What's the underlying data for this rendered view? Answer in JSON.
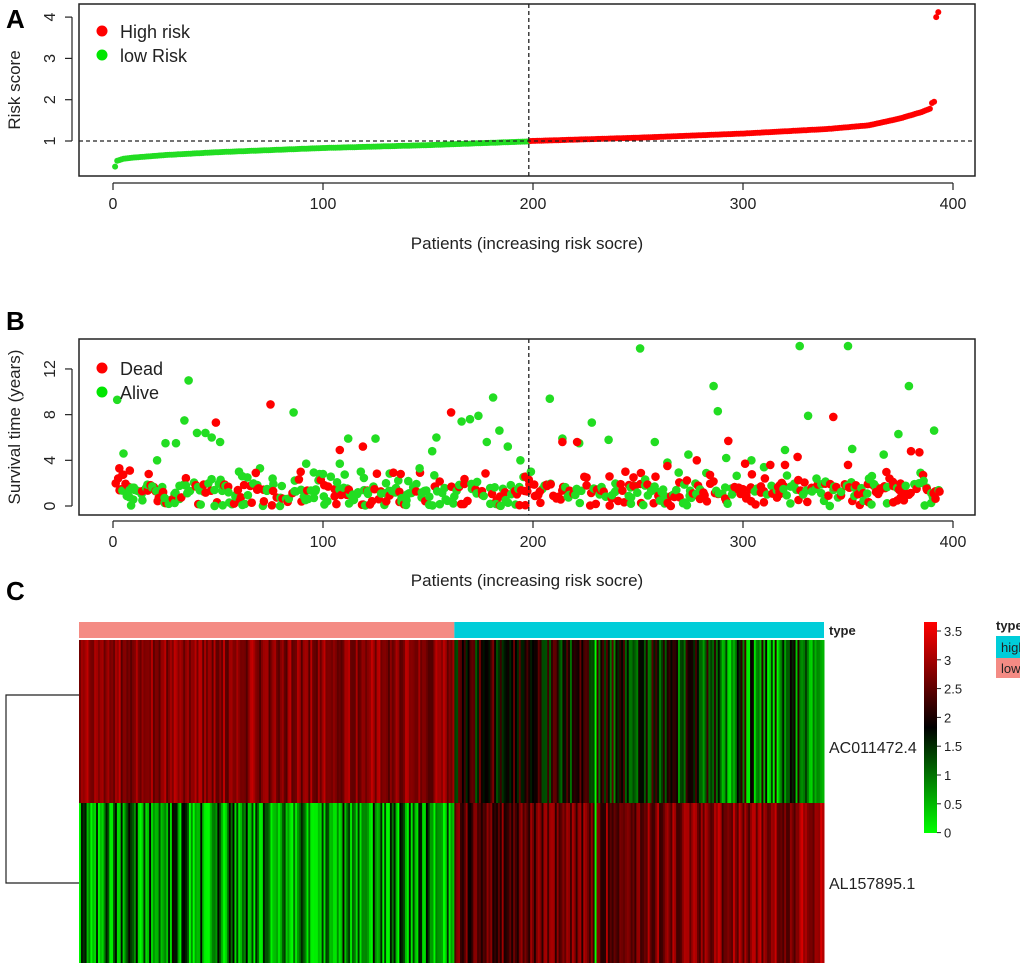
{
  "panel_letters": {
    "a": "A",
    "b": "B",
    "c": "C"
  },
  "chart_data": [
    {
      "id": "risk_score",
      "type": "scatter",
      "xlabel": "Patients (increasing risk socre)",
      "ylabel": "Risk score",
      "xlim": [
        0,
        400
      ],
      "ylim": [
        0.3,
        4.2
      ],
      "xticks": [
        0,
        100,
        200,
        300,
        400
      ],
      "yticks": [
        1,
        2,
        3,
        4
      ],
      "cutoff_x": 198,
      "cutoff_y": 1,
      "n_patients": 393,
      "n_low": 198,
      "curve_knots_low": [
        [
          1,
          0.38
        ],
        [
          2,
          0.52
        ],
        [
          5,
          0.57
        ],
        [
          10,
          0.6
        ],
        [
          25,
          0.66
        ],
        [
          50,
          0.73
        ],
        [
          100,
          0.83
        ],
        [
          150,
          0.9
        ],
        [
          198,
          0.99
        ]
      ],
      "curve_knots_high": [
        [
          199,
          1.0
        ],
        [
          250,
          1.08
        ],
        [
          300,
          1.18
        ],
        [
          340,
          1.29
        ],
        [
          360,
          1.38
        ],
        [
          375,
          1.55
        ],
        [
          385,
          1.7
        ],
        [
          389,
          1.78
        ],
        [
          390,
          1.92
        ],
        [
          391,
          1.95
        ],
        [
          392,
          4.0
        ],
        [
          393,
          4.12
        ]
      ],
      "legend": [
        {
          "label": "High risk",
          "color": "#ff0000"
        },
        {
          "label": "low Risk",
          "color": "#00e600"
        }
      ],
      "colors": {
        "high": "#ff0000",
        "low": "#22dd22"
      }
    },
    {
      "id": "survival",
      "type": "scatter",
      "xlabel": "Patients (increasing risk socre)",
      "ylabel": "Survival time (years)",
      "xlim": [
        0,
        400
      ],
      "ylim": [
        -0.5,
        14.5
      ],
      "xticks": [
        0,
        100,
        200,
        300,
        400
      ],
      "yticks": [
        0,
        4,
        8,
        12
      ],
      "cutoff_x": 198,
      "legend": [
        {
          "label": "Dead",
          "color": "#ff0000"
        },
        {
          "label": "Alive",
          "color": "#00e600"
        }
      ],
      "alive_highlights": [
        [
          2,
          9.3
        ],
        [
          5,
          4.6
        ],
        [
          9,
          1.6
        ],
        [
          14,
          0.5
        ],
        [
          21,
          4.0
        ],
        [
          25,
          5.5
        ],
        [
          30,
          5.5
        ],
        [
          34,
          7.5
        ],
        [
          36,
          11.0
        ],
        [
          40,
          6.4
        ],
        [
          44,
          6.4
        ],
        [
          47,
          6.0
        ],
        [
          51,
          5.6
        ],
        [
          55,
          1.2
        ],
        [
          60,
          3.0
        ],
        [
          64,
          2.5
        ],
        [
          70,
          3.3
        ],
        [
          76,
          2.4
        ],
        [
          86,
          8.2
        ],
        [
          92,
          3.7
        ],
        [
          100,
          2.8
        ],
        [
          108,
          3.7
        ],
        [
          112,
          5.9
        ],
        [
          118,
          3.0
        ],
        [
          125,
          5.9
        ],
        [
          130,
          2.0
        ],
        [
          140,
          1.0
        ],
        [
          146,
          3.3
        ],
        [
          152,
          4.8
        ],
        [
          154,
          6.0
        ],
        [
          166,
          7.4
        ],
        [
          170,
          7.6
        ],
        [
          174,
          7.9
        ],
        [
          178,
          5.6
        ],
        [
          181,
          9.5
        ],
        [
          184,
          6.6
        ],
        [
          188,
          5.2
        ],
        [
          194,
          4.0
        ],
        [
          199,
          3.0
        ],
        [
          208,
          9.4
        ],
        [
          214,
          5.9
        ],
        [
          222,
          5.5
        ],
        [
          228,
          7.3
        ],
        [
          236,
          5.8
        ],
        [
          251,
          13.8
        ],
        [
          258,
          5.6
        ],
        [
          264,
          3.8
        ],
        [
          274,
          4.5
        ],
        [
          286,
          10.5
        ],
        [
          288,
          8.3
        ],
        [
          292,
          4.2
        ],
        [
          304,
          4.0
        ],
        [
          310,
          3.4
        ],
        [
          320,
          4.9
        ],
        [
          327,
          14.0
        ],
        [
          331,
          7.9
        ],
        [
          335,
          2.4
        ],
        [
          350,
          14.0
        ],
        [
          352,
          5.0
        ],
        [
          360,
          2.4
        ],
        [
          367,
          4.5
        ],
        [
          374,
          6.3
        ],
        [
          379,
          10.5
        ],
        [
          386,
          2.2
        ],
        [
          391,
          6.6
        ]
      ],
      "dead_highlights": [
        [
          3,
          3.3
        ],
        [
          8,
          3.1
        ],
        [
          17,
          2.8
        ],
        [
          49,
          7.3
        ],
        [
          68,
          2.9
        ],
        [
          75,
          8.9
        ],
        [
          108,
          4.9
        ],
        [
          119,
          5.2
        ],
        [
          137,
          2.8
        ],
        [
          161,
          8.2
        ],
        [
          198,
          2.3
        ],
        [
          214,
          5.6
        ],
        [
          221,
          5.6
        ],
        [
          244,
          3.0
        ],
        [
          264,
          3.5
        ],
        [
          278,
          4.0
        ],
        [
          293,
          5.7
        ],
        [
          301,
          3.7
        ],
        [
          313,
          3.6
        ],
        [
          320,
          3.6
        ],
        [
          326,
          4.3
        ],
        [
          343,
          7.8
        ],
        [
          350,
          3.6
        ],
        [
          365,
          1.3
        ],
        [
          380,
          4.8
        ],
        [
          384,
          4.7
        ]
      ],
      "colors": {
        "dead": "#ff0000",
        "alive": "#22dd22"
      }
    },
    {
      "id": "heatmap",
      "type": "heatmap",
      "annotation_label": "type",
      "genes": [
        "AC011472.4",
        "AL157895.1"
      ],
      "groups": [
        {
          "name": "low",
          "count": 198,
          "color": "#f48b84"
        },
        {
          "name": "high",
          "count": 195,
          "color": "#00cdd9"
        }
      ],
      "colorbar": {
        "min": 0,
        "max": 3.5,
        "ticks": [
          "3.5",
          "3",
          "2.5",
          "2",
          "1.5",
          "1",
          "0.5",
          "0"
        ],
        "colors": [
          "#ff0000",
          "#000000",
          "#00ff00"
        ]
      },
      "legend_title": "type",
      "legend_items": [
        {
          "label": "high",
          "color": "#00cdd9"
        },
        {
          "label": "low",
          "color": "#f48b84"
        }
      ]
    }
  ]
}
